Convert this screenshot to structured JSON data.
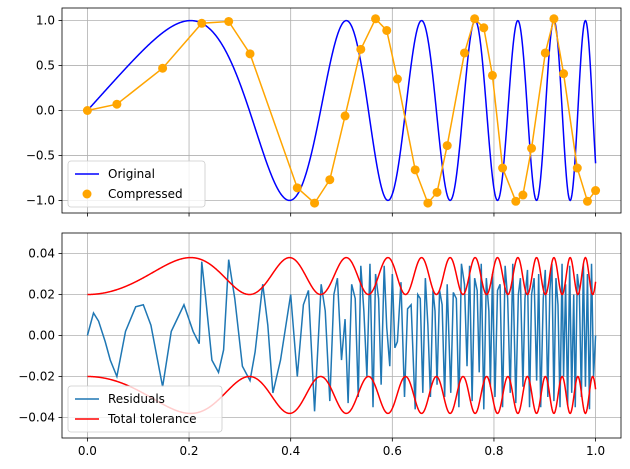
{
  "chart_data": [
    {
      "type": "line",
      "title": "",
      "xlabel": "",
      "ylabel": "",
      "xlim": [
        -0.05,
        1.05
      ],
      "ylim": [
        -1.14,
        1.14
      ],
      "xticks": [
        0.0,
        0.2,
        0.4,
        0.6,
        0.8,
        1.0
      ],
      "yticks": [
        -1.0,
        -0.5,
        0.0,
        0.5,
        1.0
      ],
      "ytick_labels": [
        "−1.0",
        "−0.5",
        "0.0",
        "0.5",
        "1.0"
      ],
      "grid": true,
      "legend": {
        "location": "lower-left"
      },
      "series": [
        {
          "name": "Original",
          "color": "#0000ff",
          "style": "line",
          "function": "sin(2*pi*(x + 5.6*x^3))",
          "x_range": [
            0,
            1
          ]
        },
        {
          "name": "Compressed",
          "color": "#ffa500",
          "style": "line+markers",
          "x": [
            0.0,
            0.058,
            0.148,
            0.225,
            0.278,
            0.32,
            0.413,
            0.447,
            0.477,
            0.507,
            0.538,
            0.567,
            0.589,
            0.61,
            0.645,
            0.67,
            0.688,
            0.708,
            0.742,
            0.762,
            0.78,
            0.797,
            0.817,
            0.843,
            0.857,
            0.874,
            0.901,
            0.918,
            0.937,
            0.964,
            0.984,
            1.0
          ],
          "y": [
            0.0,
            0.07,
            0.47,
            0.97,
            0.99,
            0.63,
            -0.86,
            -1.03,
            -0.77,
            -0.06,
            0.68,
            1.02,
            0.89,
            0.35,
            -0.66,
            -1.03,
            -0.91,
            -0.39,
            0.64,
            1.02,
            0.92,
            0.39,
            -0.64,
            -1.01,
            -0.94,
            -0.42,
            0.64,
            1.02,
            0.41,
            -0.64,
            -1.01,
            -0.89
          ]
        }
      ]
    },
    {
      "type": "line",
      "title": "",
      "xlabel": "",
      "ylabel": "",
      "xlim": [
        -0.05,
        1.05
      ],
      "ylim": [
        -0.05,
        0.05
      ],
      "xticks": [
        0.0,
        0.2,
        0.4,
        0.6,
        0.8,
        1.0
      ],
      "xtick_labels": [
        "0.0",
        "0.2",
        "0.4",
        "0.6",
        "0.8",
        "1.0"
      ],
      "yticks": [
        -0.04,
        -0.02,
        0.0,
        0.02,
        0.04
      ],
      "ytick_labels": [
        "−0.04",
        "−0.02",
        "0.00",
        "0.02",
        "0.04"
      ],
      "grid": true,
      "legend": {
        "location": "lower-left"
      },
      "series": [
        {
          "name": "Residuals",
          "color": "#1f77b4",
          "style": "line",
          "x": [
            0.0,
            0.012,
            0.022,
            0.035,
            0.045,
            0.058,
            0.075,
            0.095,
            0.11,
            0.125,
            0.148,
            0.165,
            0.19,
            0.208,
            0.22,
            0.225,
            0.232,
            0.245,
            0.258,
            0.268,
            0.278,
            0.29,
            0.305,
            0.32,
            0.33,
            0.345,
            0.355,
            0.365,
            0.38,
            0.39,
            0.4,
            0.413,
            0.425,
            0.435,
            0.447,
            0.46,
            0.468,
            0.477,
            0.485,
            0.492,
            0.5,
            0.507,
            0.513,
            0.52,
            0.527,
            0.533,
            0.538,
            0.544,
            0.55,
            0.556,
            0.562,
            0.567,
            0.573,
            0.578,
            0.584,
            0.589,
            0.595,
            0.6,
            0.605,
            0.61,
            0.617,
            0.624,
            0.63,
            0.637,
            0.645,
            0.65,
            0.655,
            0.66,
            0.665,
            0.67,
            0.675,
            0.68,
            0.684,
            0.688,
            0.693,
            0.698,
            0.703,
            0.708,
            0.715,
            0.72,
            0.726,
            0.731,
            0.736,
            0.742,
            0.747,
            0.752,
            0.757,
            0.762,
            0.767,
            0.771,
            0.775,
            0.78,
            0.785,
            0.79,
            0.793,
            0.797,
            0.802,
            0.807,
            0.812,
            0.817,
            0.822,
            0.827,
            0.832,
            0.837,
            0.843,
            0.848,
            0.852,
            0.857,
            0.861,
            0.866,
            0.87,
            0.874,
            0.879,
            0.884,
            0.888,
            0.892,
            0.897,
            0.901,
            0.906,
            0.91,
            0.914,
            0.918,
            0.922,
            0.926,
            0.93,
            0.934,
            0.937,
            0.941,
            0.945,
            0.949,
            0.953,
            0.957,
            0.96,
            0.964,
            0.968,
            0.972,
            0.976,
            0.98,
            0.984,
            0.988,
            0.992,
            0.996,
            1.0
          ],
          "y": [
            0.0,
            0.011,
            0.007,
            -0.003,
            -0.012,
            -0.02,
            0.002,
            0.014,
            0.015,
            0.005,
            -0.025,
            0.002,
            0.015,
            0.002,
            -0.004,
            0.036,
            0.02,
            -0.012,
            -0.018,
            -0.007,
            0.037,
            0.018,
            -0.015,
            -0.022,
            -0.008,
            0.025,
            0.005,
            -0.028,
            -0.012,
            0.004,
            0.02,
            -0.02,
            0.015,
            0.022,
            -0.037,
            0.025,
            0.012,
            -0.032,
            0.02,
            0.028,
            -0.012,
            0.008,
            -0.033,
            0.025,
            0.018,
            -0.03,
            0.034,
            0.012,
            -0.02,
            0.035,
            -0.035,
            0.03,
            0.018,
            -0.024,
            0.034,
            0.004,
            -0.015,
            0.03,
            -0.006,
            -0.003,
            0.026,
            -0.03,
            0.013,
            0.015,
            -0.036,
            0.02,
            0.018,
            -0.028,
            0.028,
            0.005,
            -0.03,
            0.022,
            0.012,
            -0.024,
            0.022,
            0.015,
            -0.03,
            0.025,
            -0.028,
            0.021,
            0.018,
            -0.035,
            0.035,
            0.025,
            -0.015,
            0.034,
            -0.032,
            0.028,
            0.022,
            -0.018,
            0.035,
            -0.036,
            0.028,
            0.012,
            -0.025,
            0.03,
            -0.03,
            0.022,
            0.025,
            -0.035,
            0.034,
            0.018,
            -0.028,
            0.035,
            -0.033,
            0.02,
            0.028,
            -0.025,
            0.018,
            0.032,
            -0.035,
            0.02,
            0.028,
            -0.022,
            0.03,
            -0.035,
            0.018,
            0.032,
            -0.03,
            0.022,
            0.035,
            -0.032,
            0.028,
            0.015,
            -0.035,
            0.035,
            -0.02,
            0.025,
            -0.034,
            0.034,
            -0.028,
            0.02,
            -0.035,
            0.03,
            0.022,
            -0.03,
            0.035,
            -0.025,
            0.03,
            -0.036,
            0.035,
            -0.02,
            0.0
          ]
        },
        {
          "name": "Total tolerance",
          "color": "#ff0000",
          "style": "line",
          "function": "±(0.02 + 0.018*|sin(2*pi*(x + 5.6*x^3))|^2)",
          "x_range": [
            0,
            1
          ]
        }
      ]
    }
  ]
}
